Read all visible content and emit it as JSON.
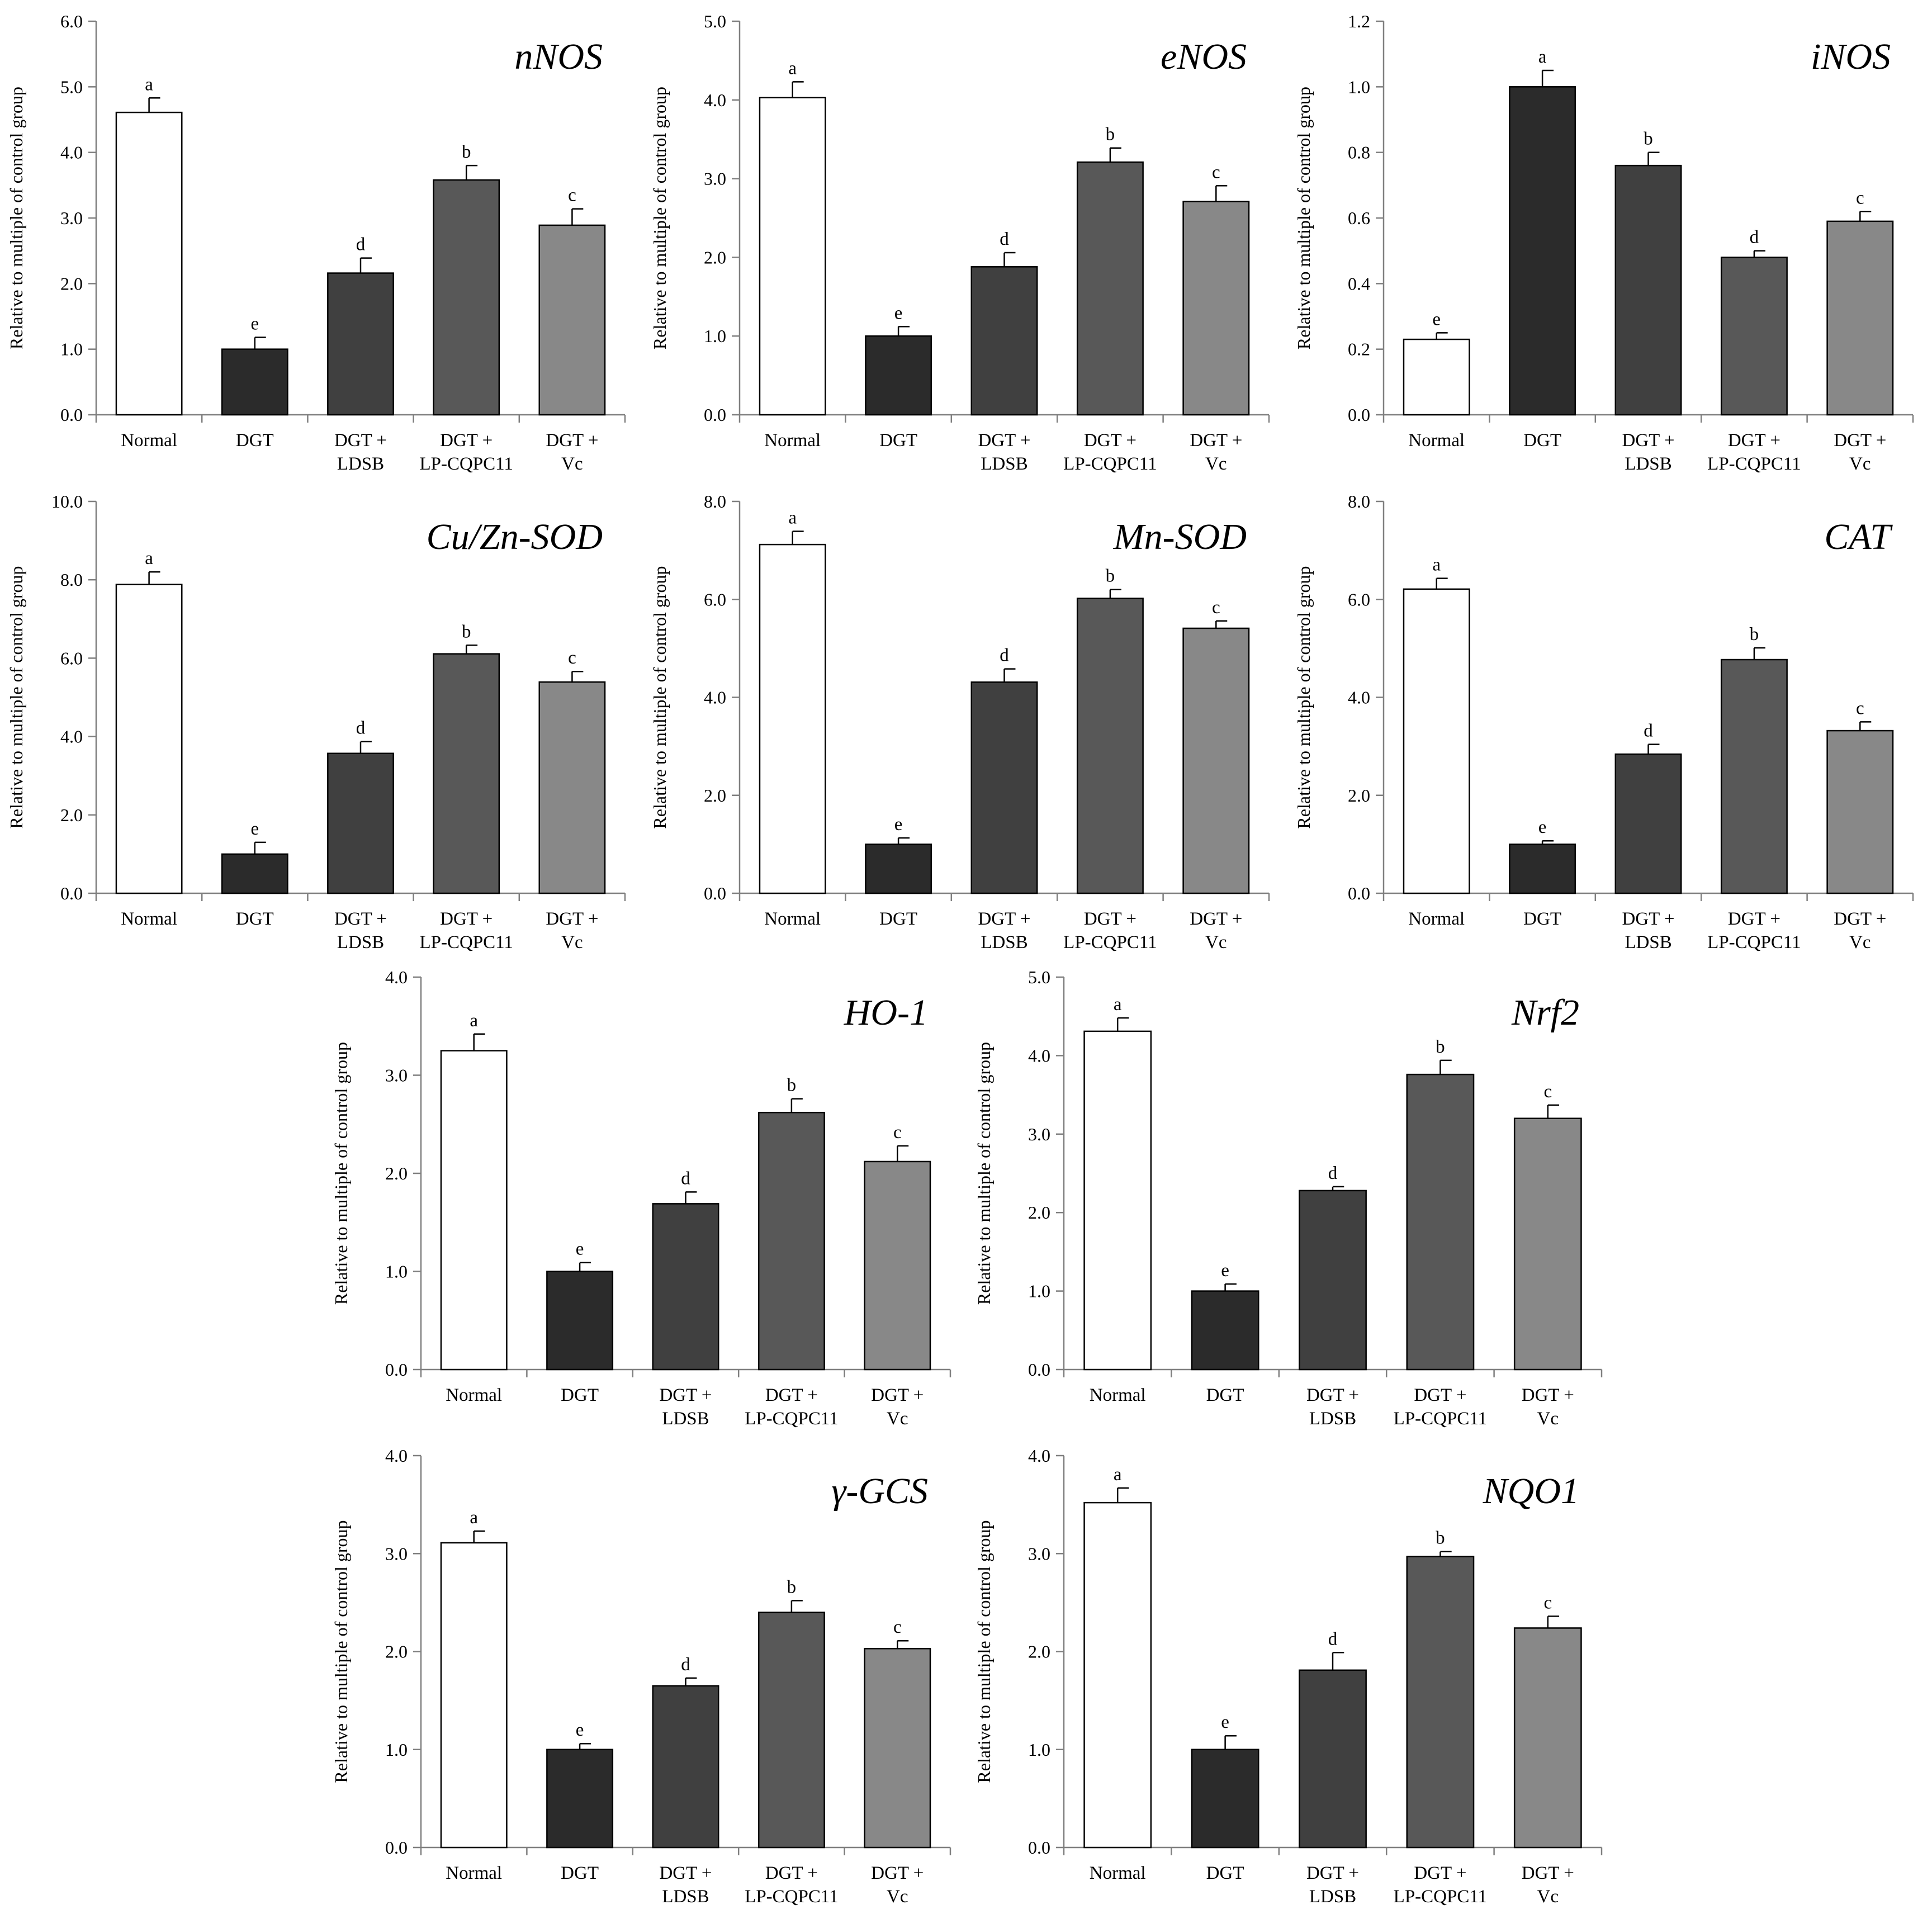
{
  "figure": {
    "shared": {
      "ylabel": "Relative to multiple of  control group",
      "categories": [
        [
          "Normal"
        ],
        [
          "DGT"
        ],
        [
          "DGT +",
          "LDSB"
        ],
        [
          "DGT +",
          "LP-CQPC11"
        ],
        [
          "DGT +",
          "Vc"
        ]
      ],
      "bar_colors": [
        "#ffffff",
        "#2b2b2b",
        "#404040",
        "#585858",
        "#888888"
      ]
    }
  },
  "chart_data": [
    {
      "type": "bar",
      "title": "nNOS",
      "ylabel": "Relative to multiple of  control group",
      "ylim": [
        0,
        6
      ],
      "yticks": [
        "0.0",
        "1.0",
        "2.0",
        "3.0",
        "4.0",
        "5.0",
        "6.0"
      ],
      "categories": [
        "Normal",
        "DGT",
        "DGT + LDSB",
        "DGT + LP-CQPC11",
        "DGT + Vc"
      ],
      "values": [
        4.61,
        1.0,
        2.16,
        3.58,
        2.89
      ],
      "errors": [
        0.22,
        0.18,
        0.23,
        0.22,
        0.25
      ],
      "letters": [
        "a",
        "e",
        "d",
        "b",
        "c"
      ]
    },
    {
      "type": "bar",
      "title": "eNOS",
      "ylabel": "Relative to multiple of  control group",
      "ylim": [
        0,
        5
      ],
      "yticks": [
        "0.0",
        "1.0",
        "2.0",
        "3.0",
        "4.0",
        "5.0"
      ],
      "categories": [
        "Normal",
        "DGT",
        "DGT + LDSB",
        "DGT + LP-CQPC11",
        "DGT + Vc"
      ],
      "values": [
        4.03,
        1.0,
        1.88,
        3.21,
        2.71
      ],
      "errors": [
        0.2,
        0.12,
        0.18,
        0.18,
        0.2
      ],
      "letters": [
        "a",
        "e",
        "d",
        "b",
        "c"
      ]
    },
    {
      "type": "bar",
      "title": "iNOS",
      "ylabel": "Relative to multiple of  control group",
      "ylim": [
        0,
        1.2
      ],
      "yticks": [
        "0.0",
        "0.2",
        "0.4",
        "0.6",
        "0.8",
        "1.0",
        "1.2"
      ],
      "categories": [
        "Normal",
        "DGT",
        "DGT + LDSB",
        "DGT + LP-CQPC11",
        "DGT + Vc"
      ],
      "values": [
        0.23,
        1.0,
        0.76,
        0.48,
        0.59
      ],
      "errors": [
        0.02,
        0.05,
        0.04,
        0.02,
        0.03
      ],
      "letters": [
        "e",
        "a",
        "b",
        "d",
        "c"
      ]
    },
    {
      "type": "bar",
      "title": "Cu/Zn-SOD",
      "ylabel": "Relative to multiple of  control group",
      "ylim": [
        0,
        10
      ],
      "yticks": [
        "0.0",
        "2.0",
        "4.0",
        "6.0",
        "8.0",
        "10.0"
      ],
      "categories": [
        "Normal",
        "DGT",
        "DGT + LDSB",
        "DGT + LP-CQPC11",
        "DGT + Vc"
      ],
      "values": [
        7.88,
        1.0,
        3.57,
        6.11,
        5.39
      ],
      "errors": [
        0.32,
        0.3,
        0.3,
        0.22,
        0.27
      ],
      "letters": [
        "a",
        "e",
        "d",
        "b",
        "c"
      ]
    },
    {
      "type": "bar",
      "title": "Mn-SOD",
      "ylabel": "Relative to multiple of  control group",
      "ylim": [
        0,
        8
      ],
      "yticks": [
        "0.0",
        "2.0",
        "4.0",
        "6.0",
        "8.0"
      ],
      "categories": [
        "Normal",
        "DGT",
        "DGT + LDSB",
        "DGT + LP-CQPC11",
        "DGT + Vc"
      ],
      "values": [
        7.12,
        1.0,
        4.31,
        6.02,
        5.41
      ],
      "errors": [
        0.27,
        0.13,
        0.27,
        0.18,
        0.15
      ],
      "letters": [
        "a",
        "e",
        "d",
        "b",
        "c"
      ]
    },
    {
      "type": "bar",
      "title": "CAT",
      "ylabel": "Relative to multiple of  control group",
      "ylim": [
        0,
        8
      ],
      "yticks": [
        "0.0",
        "2.0",
        "4.0",
        "6.0",
        "8.0"
      ],
      "categories": [
        "Normal",
        "DGT",
        "DGT + LDSB",
        "DGT + LP-CQPC11",
        "DGT + Vc"
      ],
      "values": [
        6.21,
        1.0,
        2.84,
        4.77,
        3.32
      ],
      "errors": [
        0.22,
        0.07,
        0.2,
        0.24,
        0.18
      ],
      "letters": [
        "a",
        "e",
        "d",
        "b",
        "c"
      ]
    },
    {
      "type": "bar",
      "title": "HO-1",
      "ylabel": "Relative to multiple of  control group",
      "ylim": [
        0,
        4
      ],
      "yticks": [
        "0.0",
        "1.0",
        "2.0",
        "3.0",
        "4.0"
      ],
      "categories": [
        "Normal",
        "DGT",
        "DGT + LDSB",
        "DGT + LP-CQPC11",
        "DGT + Vc"
      ],
      "values": [
        3.25,
        1.0,
        1.69,
        2.62,
        2.12
      ],
      "errors": [
        0.17,
        0.09,
        0.12,
        0.14,
        0.16
      ],
      "letters": [
        "a",
        "e",
        "d",
        "b",
        "c"
      ]
    },
    {
      "type": "bar",
      "title": "Nrf2",
      "ylabel": "Relative to multiple of  control group",
      "ylim": [
        0,
        5
      ],
      "yticks": [
        "0.0",
        "1.0",
        "2.0",
        "3.0",
        "4.0",
        "5.0"
      ],
      "categories": [
        "Normal",
        "DGT",
        "DGT + LDSB",
        "DGT + LP-CQPC11",
        "DGT + Vc"
      ],
      "values": [
        4.31,
        1.0,
        2.28,
        3.76,
        3.2
      ],
      "errors": [
        0.17,
        0.09,
        0.05,
        0.18,
        0.17
      ],
      "letters": [
        "a",
        "e",
        "d",
        "b",
        "c"
      ]
    },
    {
      "type": "bar",
      "title": "γ-GCS",
      "ylabel": "Relative to multiple of  control group",
      "ylim": [
        0,
        4
      ],
      "yticks": [
        "0.0",
        "1.0",
        "2.0",
        "3.0",
        "4.0"
      ],
      "categories": [
        "Normal",
        "DGT",
        "DGT + LDSB",
        "DGT + LP-CQPC11",
        "DGT + Vc"
      ],
      "values": [
        3.11,
        1.0,
        1.65,
        2.4,
        2.03
      ],
      "errors": [
        0.12,
        0.06,
        0.08,
        0.12,
        0.08
      ],
      "letters": [
        "a",
        "e",
        "d",
        "b",
        "c"
      ]
    },
    {
      "type": "bar",
      "title": "NQO1",
      "ylabel": "Relative to multiple of  control group",
      "ylim": [
        0,
        4
      ],
      "yticks": [
        "0.0",
        "1.0",
        "2.0",
        "3.0",
        "4.0"
      ],
      "categories": [
        "Normal",
        "DGT",
        "DGT + LDSB",
        "DGT + LP-CQPC11",
        "DGT + Vc"
      ],
      "values": [
        3.52,
        1.0,
        1.81,
        2.97,
        2.24
      ],
      "errors": [
        0.15,
        0.14,
        0.18,
        0.05,
        0.12
      ],
      "letters": [
        "a",
        "e",
        "d",
        "b",
        "c"
      ]
    }
  ]
}
